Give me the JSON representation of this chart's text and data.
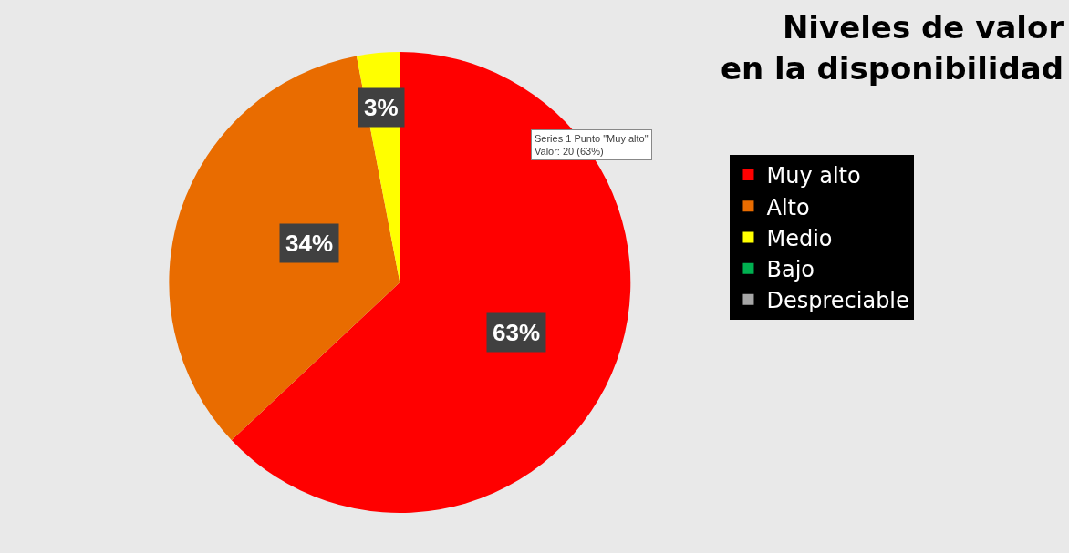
{
  "chart_data": {
    "type": "pie",
    "title": "Niveles de valor\nen la disponibilidad",
    "categories": [
      "Muy alto",
      "Alto",
      "Medio",
      "Bajo",
      "Despreciable"
    ],
    "values": [
      63,
      34,
      3,
      0,
      0
    ],
    "colors": [
      "#ff0000",
      "#e96c00",
      "#ffff00",
      "#00b050",
      "#a6a6a6"
    ],
    "value_labels": [
      "63%",
      "34%",
      "3%",
      null,
      null
    ],
    "annotations": [
      "Series 1 Punto \"Muy alto\"\nValor: 20 (63%)"
    ],
    "legend": "right"
  }
}
